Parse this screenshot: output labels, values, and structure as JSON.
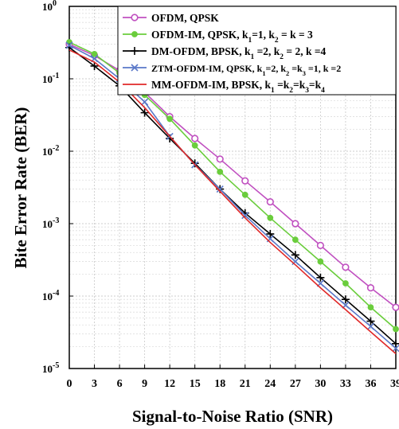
{
  "chart_data": {
    "type": "line",
    "xlabel": "Signal-to-Noise Ratio (SNR)",
    "ylabel": "Bite Error Rate (BER)",
    "x": [
      0,
      3,
      6,
      9,
      12,
      15,
      18,
      21,
      24,
      27,
      30,
      33,
      36,
      39
    ],
    "xlim": [
      0,
      39
    ],
    "ylim": [
      1e-05,
      1
    ],
    "yscale": "log",
    "y_tick_labels": [
      {
        "base": "10",
        "exp": "0"
      },
      {
        "base": "10",
        "exp": "-1"
      },
      {
        "base": "10",
        "exp": "-2"
      },
      {
        "base": "10",
        "exp": "-3"
      },
      {
        "base": "10",
        "exp": "-4"
      },
      {
        "base": "10",
        "exp": "-5"
      }
    ],
    "grid": true,
    "legend_position": "top-right",
    "series": [
      {
        "legend": [
          {
            "t": "OFDM, QPSK"
          }
        ],
        "color": "#c050c0",
        "marker": "circle",
        "values": [
          0.3,
          0.21,
          0.13,
          0.065,
          0.03,
          0.015,
          0.0078,
          0.0039,
          0.002,
          0.001,
          0.0005,
          0.00025,
          0.00013,
          7e-05
        ]
      },
      {
        "legend": [
          {
            "t": "OFDM-IM, QPSK, k"
          },
          {
            "t": "1",
            "sub": true
          },
          {
            "t": "=1, k"
          },
          {
            "t": "2",
            "sub": true
          },
          {
            "t": " = k = 3"
          }
        ],
        "color": "#6acd3c",
        "marker": "dot",
        "values": [
          0.32,
          0.22,
          0.12,
          0.06,
          0.028,
          0.012,
          0.0052,
          0.0025,
          0.0012,
          0.0006,
          0.0003,
          0.00015,
          7e-05,
          3.5e-05
        ]
      },
      {
        "legend": [
          {
            "t": "DM-OFDM, BPSK, k"
          },
          {
            "t": "1",
            "sub": true
          },
          {
            "t": " =2, k"
          },
          {
            "t": "2",
            "sub": true
          },
          {
            "t": " = 2, k =4"
          }
        ],
        "color": "#000000",
        "marker": "plus",
        "values": [
          0.27,
          0.15,
          0.08,
          0.034,
          0.015,
          0.0068,
          0.003,
          0.0014,
          0.00072,
          0.00037,
          0.00018,
          9e-05,
          4.5e-05,
          2.2e-05
        ]
      },
      {
        "legend": [
          {
            "t": "ZTM-OFDM-IM, QPSK, k"
          },
          {
            "t": "1",
            "sub": true
          },
          {
            "t": "=2, k"
          },
          {
            "t": "2",
            "sub": true
          },
          {
            "t": " =k"
          },
          {
            "t": "3",
            "sub": true
          },
          {
            "t": " =1, k =2"
          }
        ],
        "color": "#5a78c8",
        "marker": "x",
        "values": [
          0.29,
          0.19,
          0.1,
          0.048,
          0.016,
          0.0065,
          0.003,
          0.0013,
          0.00062,
          0.0003,
          0.00015,
          7.5e-05,
          3.8e-05,
          1.9e-05
        ]
      },
      {
        "legend": [
          {
            "t": "MM-OFDM-IM, BPSK, k"
          },
          {
            "t": "1",
            "sub": true
          },
          {
            "t": " =k"
          },
          {
            "t": "2",
            "sub": true
          },
          {
            "t": "=k"
          },
          {
            "t": "3",
            "sub": true
          },
          {
            "t": "=k"
          },
          {
            "t": "4",
            "sub": true
          }
        ],
        "color": "#e02828",
        "marker": "none",
        "values": [
          0.25,
          0.17,
          0.09,
          0.04,
          0.016,
          0.0065,
          0.0028,
          0.0012,
          0.00055,
          0.00027,
          0.00013,
          6.5e-05,
          3.2e-05,
          1.6e-05
        ]
      }
    ]
  }
}
